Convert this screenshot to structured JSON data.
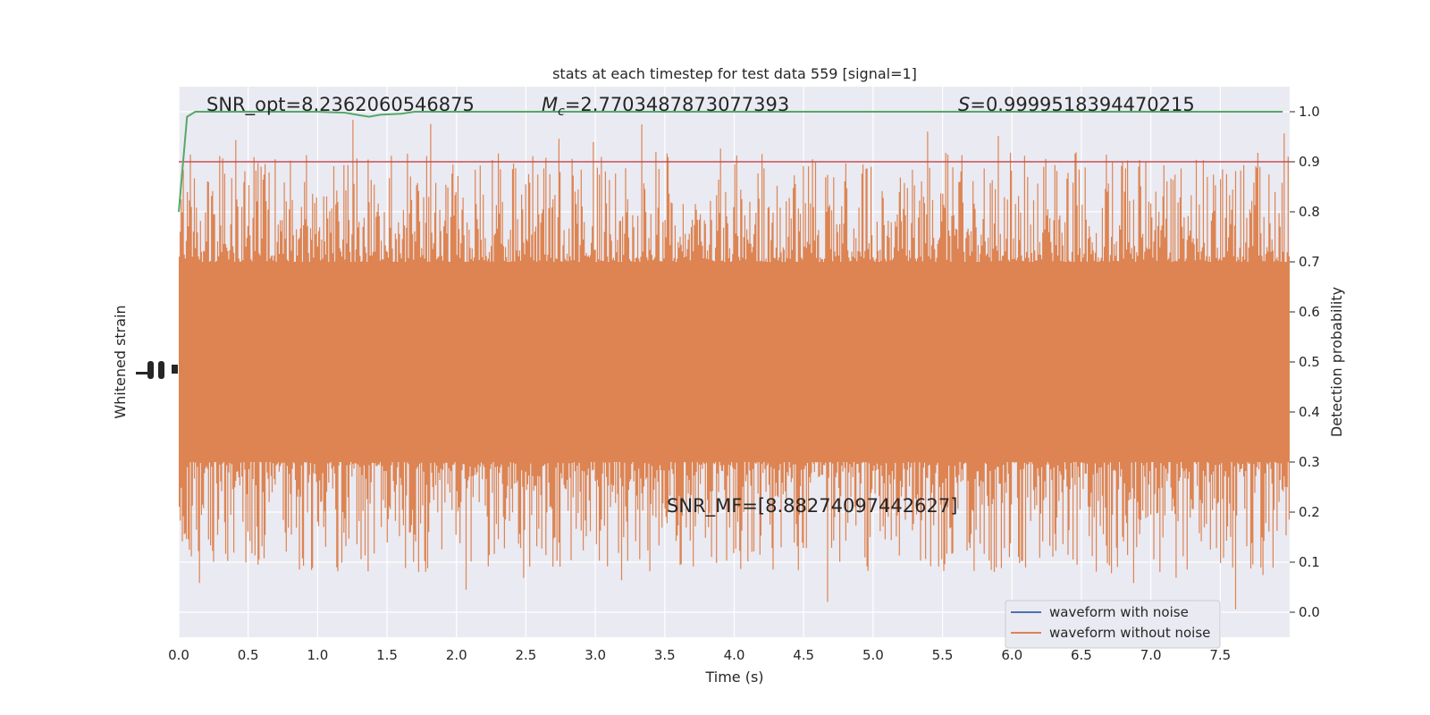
{
  "chart_data": {
    "type": "line",
    "title": "stats at each timestep for test data 559 [signal=1]",
    "xlabel": "Time (s)",
    "ylabel_left": "Whitened strain",
    "ylabel_right": "Detection probability",
    "xlim": [
      0.0,
      8.0
    ],
    "ylim_right": [
      -0.05,
      1.05
    ],
    "xticks": [
      "0.0",
      "0.5",
      "1.0",
      "1.5",
      "2.0",
      "2.5",
      "3.0",
      "3.5",
      "4.0",
      "4.5",
      "5.0",
      "5.5",
      "6.0",
      "6.5",
      "7.0",
      "7.5"
    ],
    "yticks_right": [
      "0.0",
      "0.1",
      "0.2",
      "0.3",
      "0.4",
      "0.5",
      "0.6",
      "0.7",
      "0.8",
      "0.9",
      "1.0"
    ],
    "grid": true,
    "legend_position": "lower-right",
    "annotations": {
      "snr_opt": "SNR_opt=8.2362060546875",
      "chirp_mass": "=2.7703487873077393",
      "chirp_mass_symbol": "M",
      "chirp_mass_sub": "c",
      "significance": "=0.9999518394470215",
      "significance_symbol": "S",
      "snr_mf": "SNR_MF=[8.88274097442627]"
    },
    "threshold": 0.9,
    "detection_probability": {
      "x": [
        0.0,
        0.06,
        0.12,
        0.2,
        0.4,
        0.8,
        1.0,
        1.2,
        1.3,
        1.37,
        1.45,
        1.6,
        1.7,
        2.0,
        3.0,
        4.0,
        5.0,
        6.0,
        7.0,
        7.95
      ],
      "y": [
        0.8,
        0.99,
        1.0,
        1.0,
        1.0,
        1.0,
        1.0,
        0.998,
        0.993,
        0.99,
        0.994,
        0.996,
        1.0,
        1.0,
        1.0,
        1.0,
        1.0,
        1.0,
        1.0,
        1.0
      ]
    },
    "series": [
      {
        "name": "waveform with noise",
        "color": "#4c72b0"
      },
      {
        "name": "waveform without noise",
        "color": "#dd8452"
      },
      {
        "name": "detection probability",
        "color": "#55a868"
      },
      {
        "name": "threshold",
        "color": "#c44e52"
      }
    ],
    "noise_band": {
      "core_low": 0.3,
      "core_high": 0.7,
      "spike_min": 0.0,
      "spike_max": 1.0
    },
    "colors": {
      "axes_background": "#eaeaf2",
      "grid": "#ffffff",
      "waveform_without_noise": "#dd8452",
      "waveform_with_noise": "#4c72b0",
      "detection_probability": "#55a868",
      "threshold": "#c44e52"
    }
  }
}
